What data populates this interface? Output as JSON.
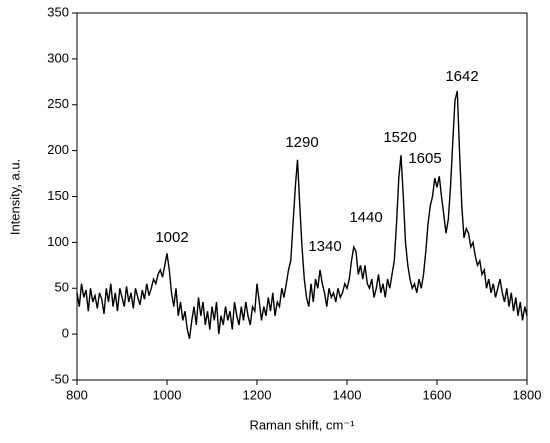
{
  "chart_data": {
    "type": "line",
    "x_label": "Raman shift, cm⁻¹",
    "y_label": "Intensity, a.u.",
    "xlim": [
      800,
      1800
    ],
    "xticks": [
      800,
      1000,
      1200,
      1400,
      1600,
      1800
    ],
    "ylim": [
      -50,
      350
    ],
    "yticks": [
      -50,
      0,
      50,
      100,
      150,
      200,
      250,
      300,
      350
    ],
    "grid": false,
    "annotations": [
      "1002",
      "1290",
      "1340",
      "1440",
      "1520",
      "1605",
      "1642"
    ],
    "series": [
      {
        "color": "#000000",
        "x": [
          800,
          805,
          810,
          815,
          820,
          825,
          830,
          835,
          840,
          845,
          850,
          855,
          860,
          865,
          870,
          875,
          880,
          885,
          890,
          895,
          900,
          905,
          910,
          915,
          920,
          925,
          930,
          935,
          940,
          945,
          950,
          955,
          960,
          965,
          970,
          975,
          980,
          985,
          990,
          995,
          1000,
          1005,
          1010,
          1015,
          1020,
          1025,
          1030,
          1035,
          1040,
          1045,
          1050,
          1055,
          1060,
          1065,
          1070,
          1075,
          1080,
          1085,
          1090,
          1095,
          1100,
          1105,
          1110,
          1115,
          1120,
          1125,
          1130,
          1135,
          1140,
          1145,
          1150,
          1155,
          1160,
          1165,
          1170,
          1175,
          1180,
          1185,
          1190,
          1195,
          1200,
          1205,
          1210,
          1215,
          1220,
          1225,
          1230,
          1235,
          1240,
          1245,
          1250,
          1255,
          1260,
          1265,
          1270,
          1275,
          1280,
          1285,
          1290,
          1295,
          1300,
          1305,
          1310,
          1315,
          1320,
          1325,
          1330,
          1335,
          1340,
          1345,
          1350,
          1355,
          1360,
          1365,
          1370,
          1375,
          1380,
          1385,
          1390,
          1395,
          1400,
          1405,
          1410,
          1415,
          1420,
          1425,
          1430,
          1435,
          1440,
          1445,
          1450,
          1455,
          1460,
          1465,
          1470,
          1475,
          1480,
          1485,
          1490,
          1495,
          1500,
          1505,
          1510,
          1515,
          1520,
          1525,
          1530,
          1535,
          1540,
          1545,
          1550,
          1555,
          1560,
          1565,
          1570,
          1575,
          1580,
          1585,
          1590,
          1595,
          1600,
          1605,
          1610,
          1615,
          1620,
          1625,
          1630,
          1635,
          1640,
          1645,
          1650,
          1655,
          1660,
          1665,
          1670,
          1675,
          1680,
          1685,
          1690,
          1695,
          1700,
          1705,
          1710,
          1715,
          1720,
          1725,
          1730,
          1735,
          1740,
          1745,
          1750,
          1755,
          1760,
          1765,
          1770,
          1775,
          1780,
          1785,
          1790,
          1795,
          1800
        ],
        "values": [
          45,
          30,
          55,
          40,
          48,
          25,
          50,
          35,
          42,
          28,
          45,
          38,
          22,
          50,
          35,
          55,
          30,
          45,
          25,
          50,
          40,
          30,
          52,
          35,
          45,
          28,
          50,
          40,
          32,
          48,
          38,
          55,
          42,
          50,
          60,
          55,
          65,
          70,
          62,
          75,
          88,
          70,
          45,
          30,
          50,
          20,
          35,
          15,
          25,
          5,
          -5,
          15,
          30,
          10,
          40,
          20,
          35,
          10,
          25,
          5,
          30,
          15,
          35,
          0,
          20,
          10,
          30,
          15,
          25,
          5,
          35,
          20,
          10,
          30,
          15,
          35,
          20,
          10,
          30,
          25,
          55,
          35,
          15,
          30,
          20,
          40,
          25,
          45,
          20,
          35,
          30,
          50,
          40,
          55,
          70,
          80,
          120,
          160,
          190,
          140,
          95,
          60,
          40,
          30,
          55,
          35,
          60,
          50,
          70,
          55,
          45,
          30,
          50,
          40,
          45,
          35,
          50,
          40,
          45,
          55,
          50,
          60,
          80,
          95,
          90,
          65,
          75,
          60,
          75,
          55,
          50,
          60,
          40,
          50,
          65,
          45,
          55,
          40,
          60,
          50,
          65,
          80,
          120,
          170,
          195,
          150,
          100,
          75,
          60,
          50,
          55,
          45,
          60,
          50,
          65,
          90,
          120,
          140,
          150,
          170,
          160,
          172,
          150,
          130,
          110,
          125,
          160,
          210,
          255,
          265,
          200,
          140,
          105,
          115,
          110,
          95,
          100,
          85,
          75,
          80,
          65,
          70,
          50,
          60,
          45,
          55,
          40,
          50,
          60,
          45,
          35,
          50,
          30,
          45,
          25,
          40,
          20,
          35,
          15,
          30,
          20
        ]
      }
    ]
  }
}
